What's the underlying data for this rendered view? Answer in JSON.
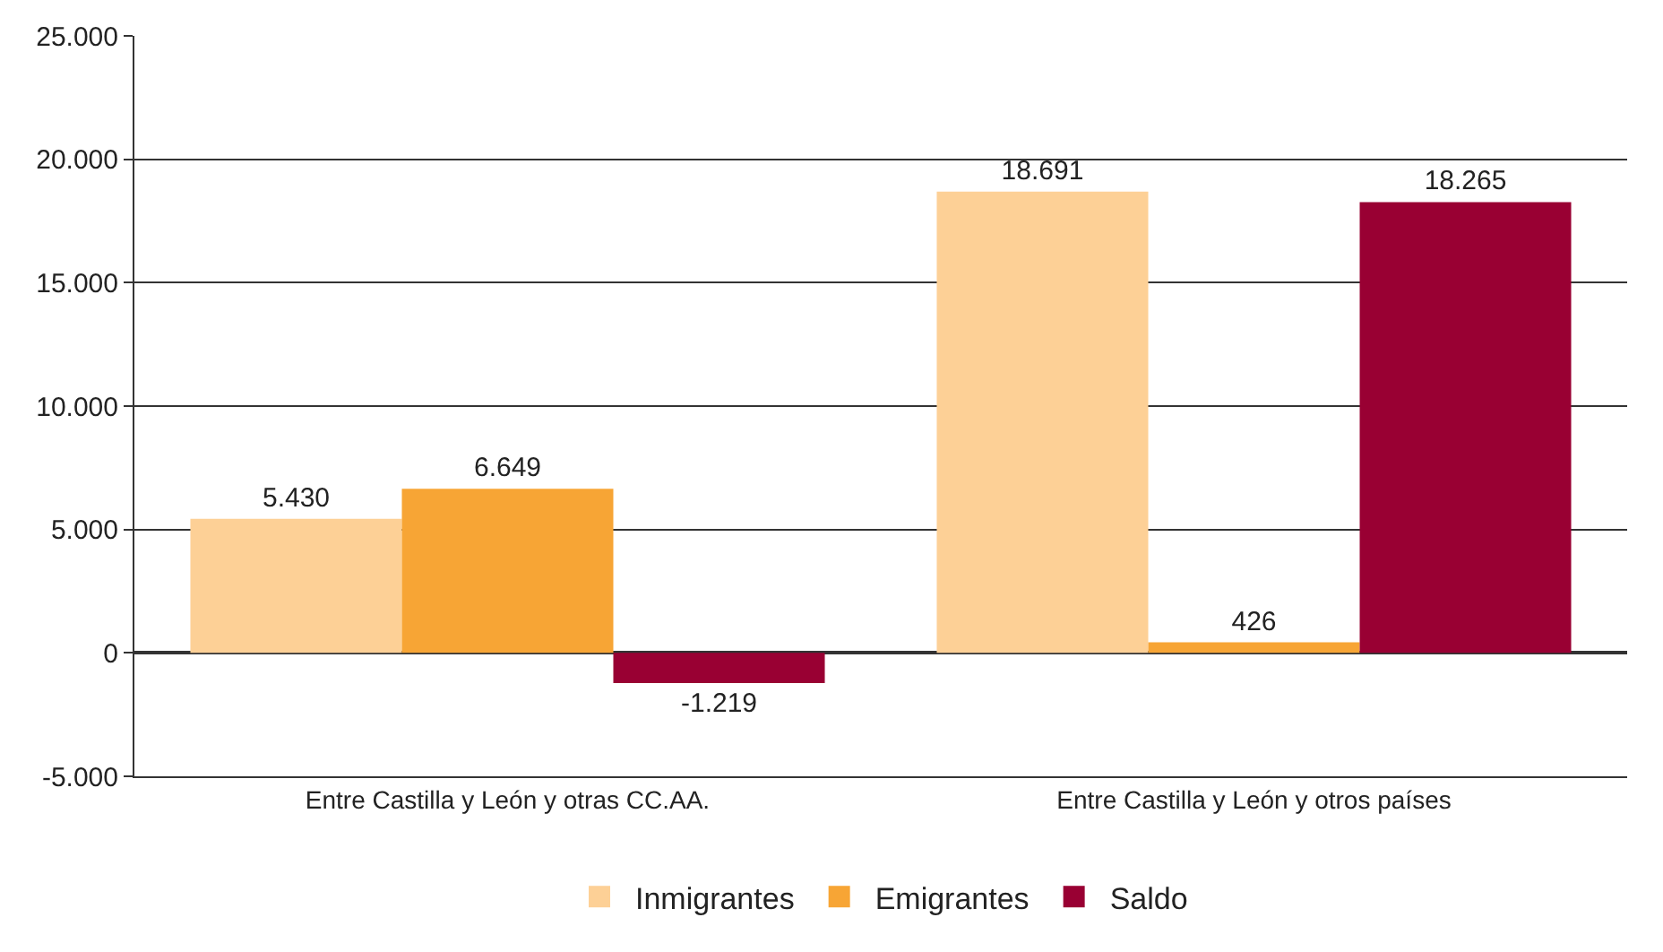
{
  "chart_data": {
    "type": "bar",
    "categories": [
      "Entre Castilla y León y otras CC.AA.",
      "Entre Castilla y León y otros países"
    ],
    "series": [
      {
        "name": "Inmigrantes",
        "color": "#fdd096",
        "values": [
          5430,
          18691
        ],
        "value_labels": [
          "5.430",
          "18.691"
        ]
      },
      {
        "name": "Emigrantes",
        "color": "#f7a535",
        "values": [
          6649,
          426
        ],
        "value_labels": [
          "6.649",
          "426"
        ]
      },
      {
        "name": "Saldo",
        "color": "#990033",
        "values": [
          -1219,
          18265
        ],
        "value_labels": [
          "-1.219",
          "18.265"
        ]
      }
    ],
    "ylim": [
      -5000,
      25000
    ],
    "yticks": [
      {
        "value": -5000,
        "label": "-5.000"
      },
      0,
      {
        "value": 5000,
        "label": "5.000"
      },
      {
        "value": 10000,
        "label": "10.000"
      },
      {
        "value": 15000,
        "label": "15.000"
      },
      {
        "value": 20000,
        "label": "20.000"
      },
      {
        "value": 25000,
        "label": "25.000"
      }
    ],
    "grid": "y",
    "legend": "bottom"
  }
}
